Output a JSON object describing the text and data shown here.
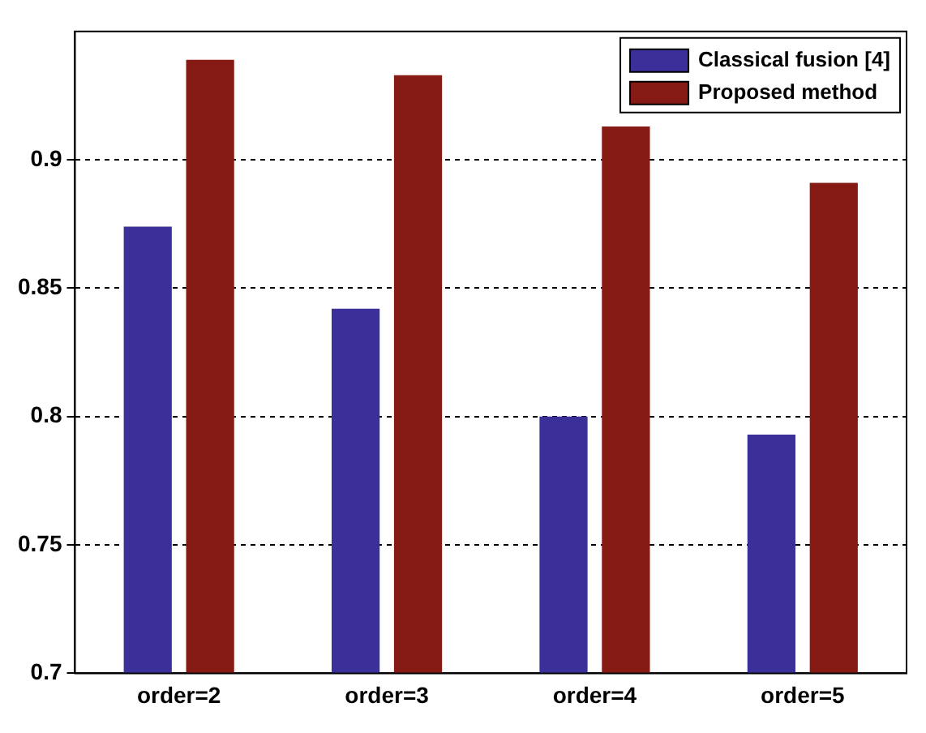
{
  "chart_data": {
    "type": "bar",
    "categories": [
      "order=2",
      "order=3",
      "order=4",
      "order=5"
    ],
    "series": [
      {
        "name": "Classical fusion [4]",
        "color": "#3b2f9a",
        "values": [
          0.874,
          0.842,
          0.8,
          0.793
        ]
      },
      {
        "name": "Proposed method",
        "color": "#861a14",
        "values": [
          0.939,
          0.933,
          0.913,
          0.891
        ]
      }
    ],
    "ylim": [
      0.7,
      0.95
    ],
    "yticks": [
      0.7,
      0.75,
      0.8,
      0.85,
      0.9
    ],
    "grid": "y",
    "legend": "top right"
  }
}
